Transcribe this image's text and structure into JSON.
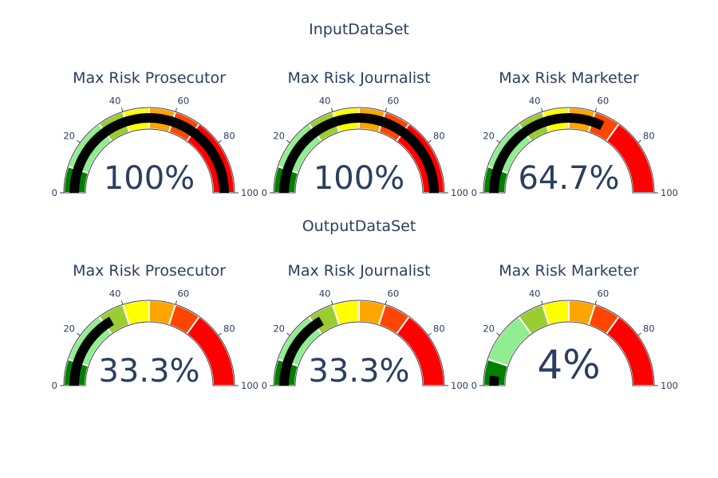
{
  "chart_data": {
    "type": "gauge",
    "axis_range": [
      0,
      100
    ],
    "tick_values": [
      0,
      20,
      40,
      60,
      80,
      100
    ],
    "value_suffix": "%",
    "bands": [
      {
        "range": [
          0,
          10
        ],
        "color": "#008000"
      },
      {
        "range": [
          10,
          30
        ],
        "color": "#90EE90"
      },
      {
        "range": [
          30,
          40
        ],
        "color": "#9ACD32"
      },
      {
        "range": [
          40,
          50
        ],
        "color": "#FFFF00"
      },
      {
        "range": [
          50,
          60
        ],
        "color": "#FFA500"
      },
      {
        "range": [
          60,
          70
        ],
        "color": "#FF4500"
      },
      {
        "range": [
          70,
          100
        ],
        "color": "#FF0000"
      }
    ],
    "bar_color": "#000000",
    "groups": [
      {
        "title": "InputDataSet",
        "gauges": [
          {
            "title": "Max Risk Prosecutor",
            "value": 100,
            "label": "100%"
          },
          {
            "title": "Max Risk Journalist",
            "value": 100,
            "label": "100%"
          },
          {
            "title": "Max Risk Marketer",
            "value": 64.7,
            "label": "64.7%"
          }
        ]
      },
      {
        "title": "OutputDataSet",
        "gauges": [
          {
            "title": "Max Risk Prosecutor",
            "value": 33.3,
            "label": "33.3%"
          },
          {
            "title": "Max Risk Journalist",
            "value": 33.3,
            "label": "33.3%"
          },
          {
            "title": "Max Risk Marketer",
            "value": 4,
            "label": "4%"
          }
        ]
      }
    ]
  }
}
